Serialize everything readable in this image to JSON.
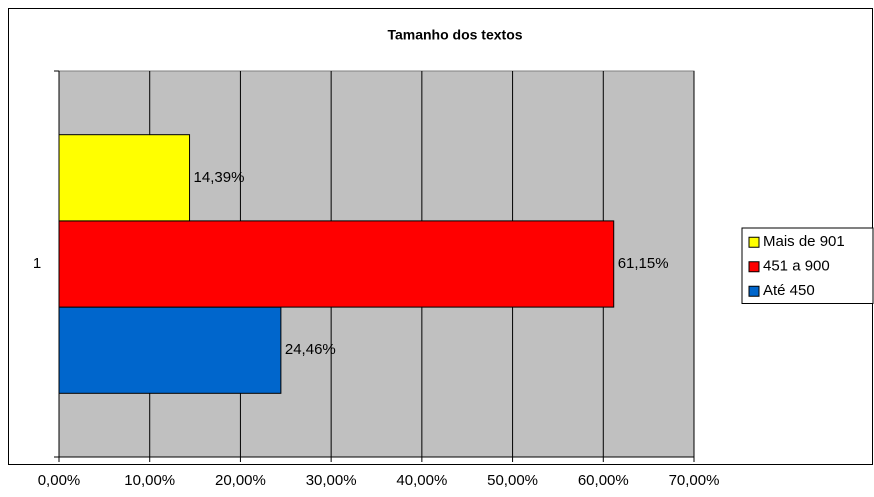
{
  "chart_data": {
    "type": "hbar",
    "title": "Tamanho dos textos",
    "categories": [
      "1"
    ],
    "series": [
      {
        "name": "Até 450",
        "color": "#0066cc",
        "values": [
          24.46
        ],
        "value_labels": [
          "24,46%"
        ]
      },
      {
        "name": "451 a 900",
        "color": "#ff0000",
        "values": [
          61.15
        ],
        "value_labels": [
          "61,15%"
        ]
      },
      {
        "name": "Mais de 901",
        "color": "#ffff00",
        "values": [
          14.39
        ],
        "value_labels": [
          "14,39%"
        ]
      }
    ],
    "xlim": [
      0,
      70
    ],
    "xticks": [
      {
        "value": 0,
        "label": "0,00%"
      },
      {
        "value": 10,
        "label": "10,00%"
      },
      {
        "value": 20,
        "label": "20,00%"
      },
      {
        "value": 30,
        "label": "30,00%"
      },
      {
        "value": 40,
        "label": "40,00%"
      },
      {
        "value": 50,
        "label": "50,00%"
      },
      {
        "value": 60,
        "label": "60,00%"
      },
      {
        "value": 70,
        "label": "70,00%"
      }
    ],
    "grid": true,
    "legend": "right"
  }
}
